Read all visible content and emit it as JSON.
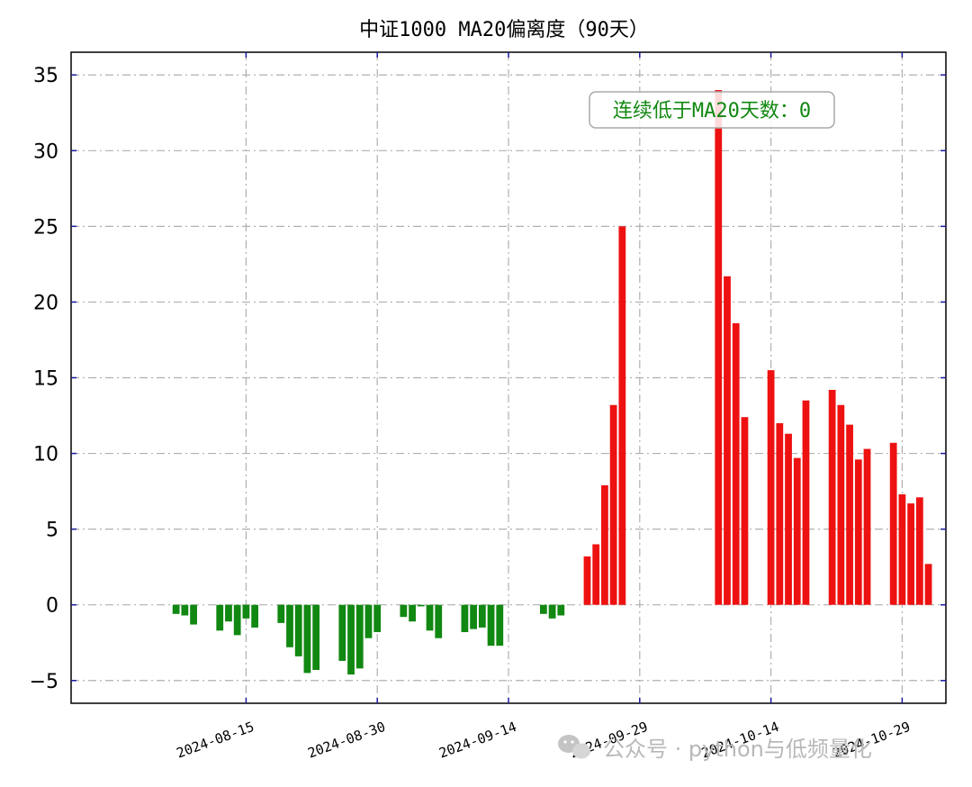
{
  "chart_data": {
    "type": "bar",
    "title": "中证1000 MA20偏离度（90天）",
    "xlabel": "",
    "ylabel": "",
    "ylim": [
      -6.5,
      36.5
    ],
    "x_range": [
      "2024-07-26",
      "2024-11-03"
    ],
    "yticks": [
      -5,
      0,
      5,
      10,
      15,
      20,
      25,
      30,
      35
    ],
    "ytick_labels": [
      "−5",
      "0",
      "5",
      "10",
      "15",
      "20",
      "25",
      "30",
      "35"
    ],
    "xticks": [
      "2024-08-15",
      "2024-08-30",
      "2024-09-14",
      "2024-09-29",
      "2024-10-14",
      "2024-10-29"
    ],
    "grid": true,
    "positive_color": "#ee1111",
    "negative_color": "#118811",
    "x": [
      "2024-08-07",
      "2024-08-08",
      "2024-08-09",
      "2024-08-12",
      "2024-08-13",
      "2024-08-14",
      "2024-08-15",
      "2024-08-16",
      "2024-08-19",
      "2024-08-20",
      "2024-08-21",
      "2024-08-22",
      "2024-08-23",
      "2024-08-26",
      "2024-08-27",
      "2024-08-28",
      "2024-08-29",
      "2024-08-30",
      "2024-09-02",
      "2024-09-03",
      "2024-09-04",
      "2024-09-05",
      "2024-09-06",
      "2024-09-09",
      "2024-09-10",
      "2024-09-11",
      "2024-09-12",
      "2024-09-13",
      "2024-09-18",
      "2024-09-19",
      "2024-09-20",
      "2024-09-23",
      "2024-09-24",
      "2024-09-25",
      "2024-09-26",
      "2024-09-27",
      "2024-09-30",
      "2024-10-08",
      "2024-10-09",
      "2024-10-10",
      "2024-10-11",
      "2024-10-14",
      "2024-10-15",
      "2024-10-16",
      "2024-10-17",
      "2024-10-18",
      "2024-10-21",
      "2024-10-22",
      "2024-10-23",
      "2024-10-24",
      "2024-10-25",
      "2024-10-28",
      "2024-10-29",
      "2024-10-30",
      "2024-10-31",
      "2024-11-01"
    ],
    "values": [
      -0.6,
      -0.7,
      -1.3,
      -1.7,
      -1.1,
      -2.0,
      -0.9,
      -1.5,
      -1.2,
      -2.8,
      -3.4,
      -4.5,
      -4.3,
      -3.7,
      -4.6,
      -4.2,
      -2.2,
      -1.8,
      -0.8,
      -1.1,
      -0.1,
      -1.7,
      -2.2,
      -1.8,
      -1.6,
      -1.5,
      -2.7,
      -2.7,
      -0.6,
      -0.9,
      -0.7,
      3.2,
      4.0,
      7.9,
      13.2,
      25.0,
      0.0,
      34.0,
      21.7,
      18.6,
      12.4,
      15.5,
      12.0,
      11.3,
      9.7,
      13.5,
      14.2,
      13.2,
      11.9,
      9.6,
      10.3,
      10.7,
      7.3,
      6.7,
      7.1,
      2.7
    ],
    "annotation": {
      "text": "连续低于MA20天数：0",
      "color": "#118811"
    }
  },
  "watermark": {
    "text": "公众号 · python与低频量化"
  }
}
